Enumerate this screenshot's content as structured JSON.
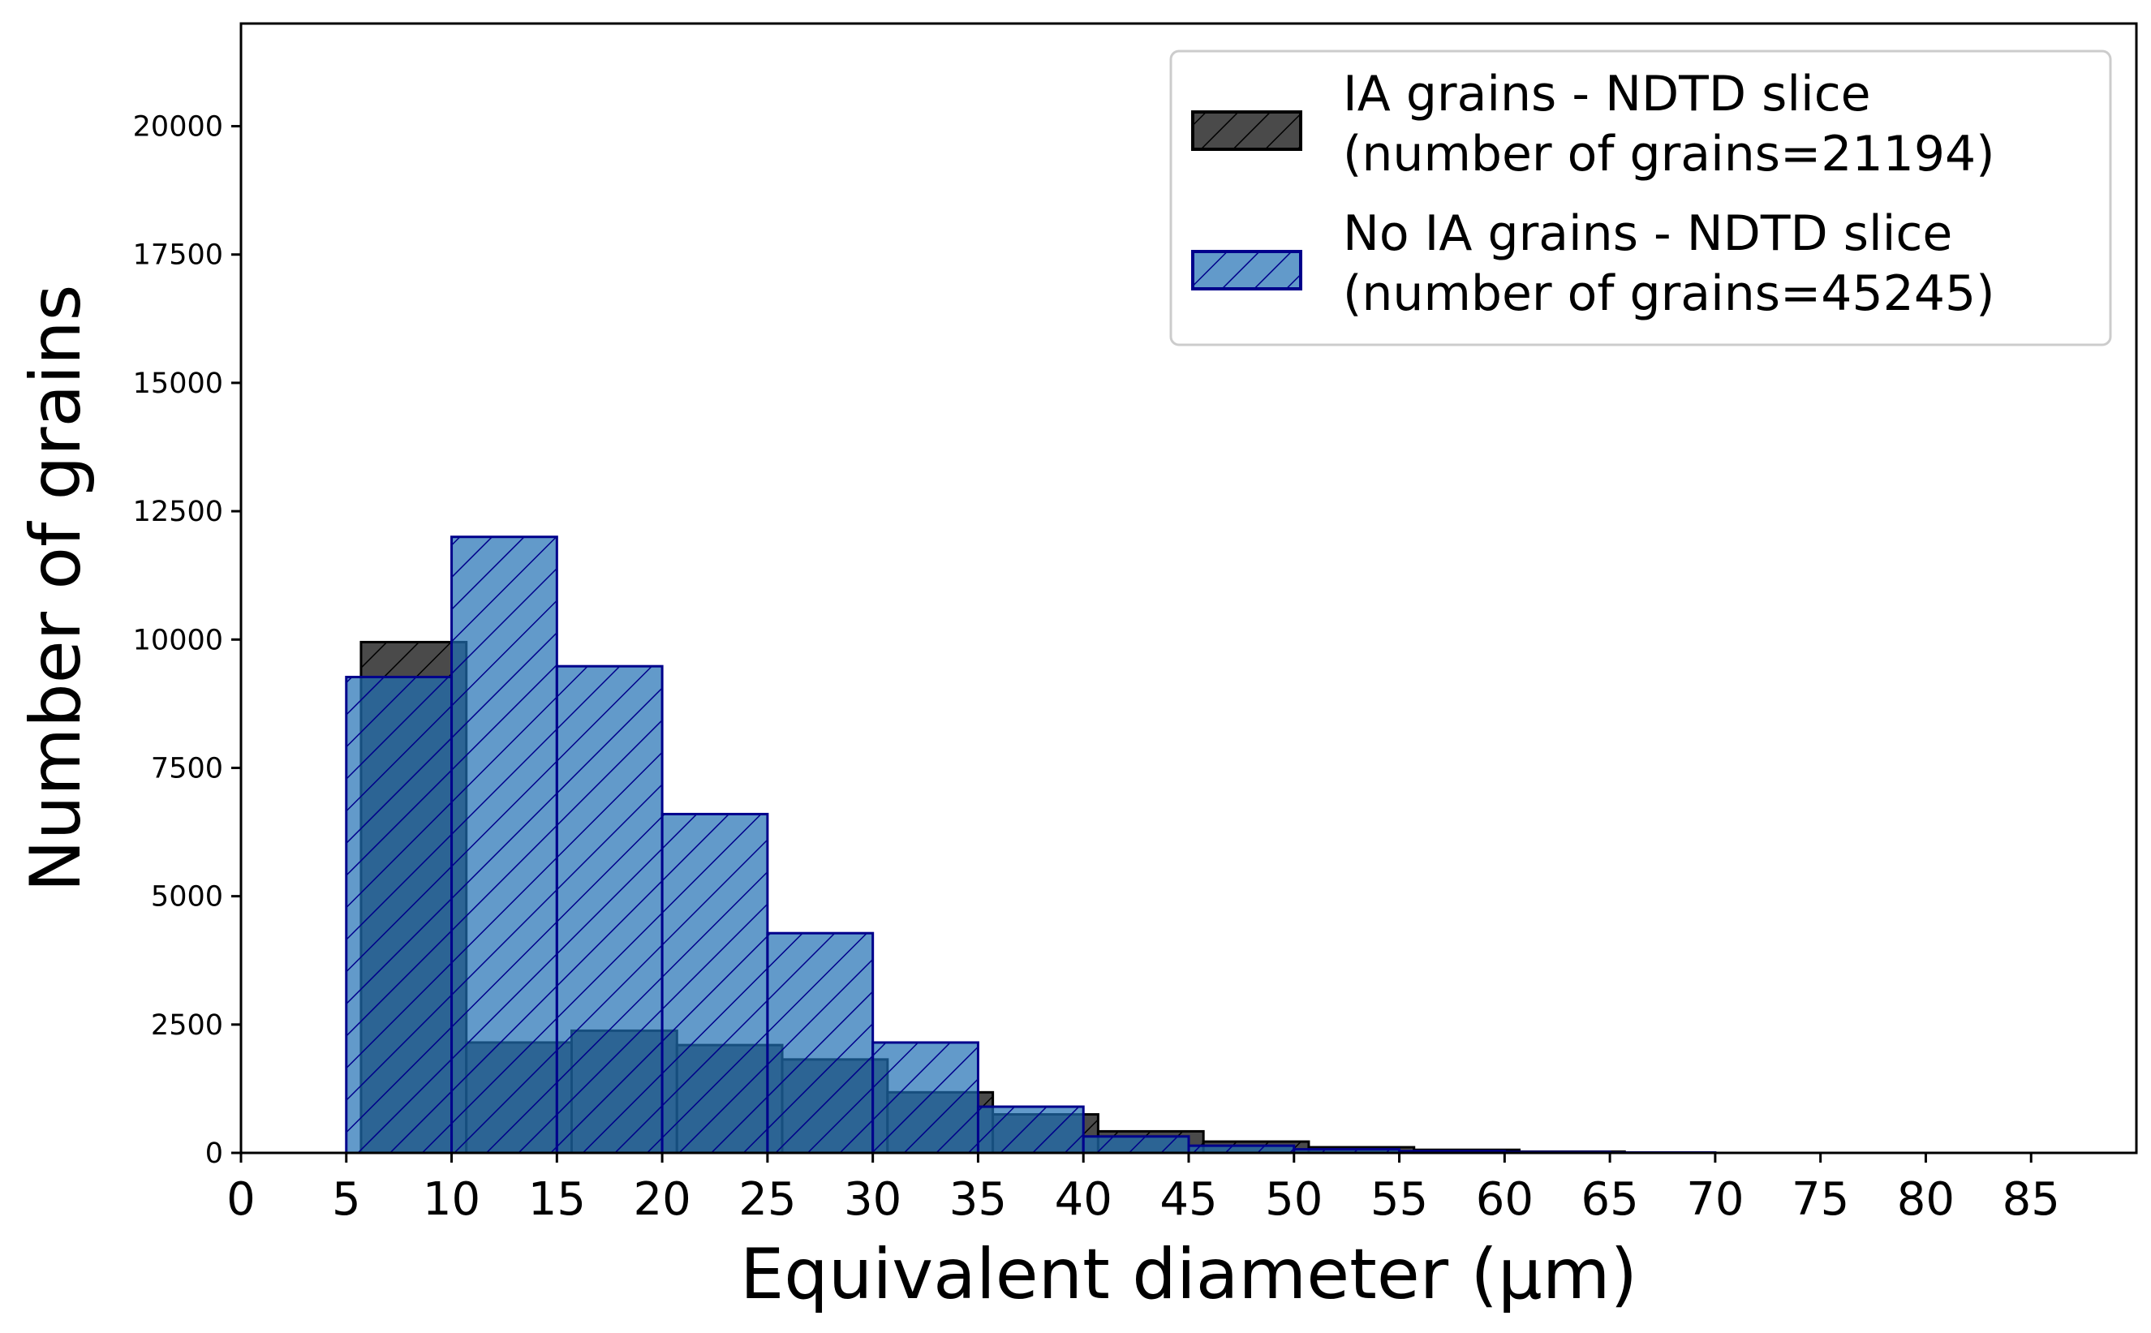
{
  "chart_data": {
    "type": "bar",
    "title": "",
    "xlabel": "Equivalent diameter (µm)",
    "ylabel": "Number of grains",
    "xlim": [
      0,
      90
    ],
    "ylim": [
      0,
      22000
    ],
    "xticks": [
      0,
      5,
      10,
      15,
      20,
      25,
      30,
      35,
      40,
      45,
      50,
      55,
      60,
      65,
      70,
      75,
      80,
      85
    ],
    "yticks": [
      0,
      2500,
      5000,
      7500,
      10000,
      12500,
      15000,
      17500,
      20000
    ],
    "grid": false,
    "legend_position": "top-right",
    "series": [
      {
        "name": "IA grains - NDTD slice\n (number of grains=21194)",
        "legend_lines": [
          "IA grains - NDTD slice",
          " (number of grains=21194)"
        ],
        "color": "#4a4a4a",
        "edge_color": "#000000",
        "hatch_color": "#000000",
        "bins": [
          {
            "x0": 0,
            "x1": 5.7,
            "value": 0
          },
          {
            "x0": 5.7,
            "x1": 10.7,
            "value": 9950
          },
          {
            "x0": 10.7,
            "x1": 15.7,
            "value": 2150
          },
          {
            "x0": 15.7,
            "x1": 20.7,
            "value": 2380
          },
          {
            "x0": 20.7,
            "x1": 25.7,
            "value": 2100
          },
          {
            "x0": 25.7,
            "x1": 30.7,
            "value": 1820
          },
          {
            "x0": 30.7,
            "x1": 35.7,
            "value": 1180
          },
          {
            "x0": 35.7,
            "x1": 40.7,
            "value": 750
          },
          {
            "x0": 40.7,
            "x1": 45.7,
            "value": 420
          },
          {
            "x0": 45.7,
            "x1": 50.7,
            "value": 220
          },
          {
            "x0": 50.7,
            "x1": 55.7,
            "value": 110
          },
          {
            "x0": 55.7,
            "x1": 60.7,
            "value": 60
          },
          {
            "x0": 60.7,
            "x1": 65.7,
            "value": 25
          }
        ]
      },
      {
        "name": "No IA grains - NDTD slice\n (number of grains=45245)",
        "legend_lines": [
          "No IA grains - NDTD slice",
          " (number of grains=45245)"
        ],
        "color": "#1f6fb4",
        "fill_opacity": 0.7,
        "edge_color": "#00008b",
        "hatch_color": "#00008b",
        "bins": [
          {
            "x0": 0,
            "x1": 5,
            "value": 0
          },
          {
            "x0": 5,
            "x1": 10,
            "value": 9270
          },
          {
            "x0": 10,
            "x1": 15,
            "value": 12000
          },
          {
            "x0": 15,
            "x1": 20,
            "value": 9480
          },
          {
            "x0": 20,
            "x1": 25,
            "value": 6600
          },
          {
            "x0": 25,
            "x1": 30,
            "value": 4280
          },
          {
            "x0": 30,
            "x1": 35,
            "value": 2150
          },
          {
            "x0": 35,
            "x1": 40,
            "value": 900
          },
          {
            "x0": 40,
            "x1": 45,
            "value": 320
          },
          {
            "x0": 45,
            "x1": 50,
            "value": 140
          },
          {
            "x0": 50,
            "x1": 55,
            "value": 70
          },
          {
            "x0": 55,
            "x1": 60,
            "value": 35
          },
          {
            "x0": 60,
            "x1": 65,
            "value": 18
          },
          {
            "x0": 65,
            "x1": 70,
            "value": 8
          }
        ]
      }
    ]
  }
}
